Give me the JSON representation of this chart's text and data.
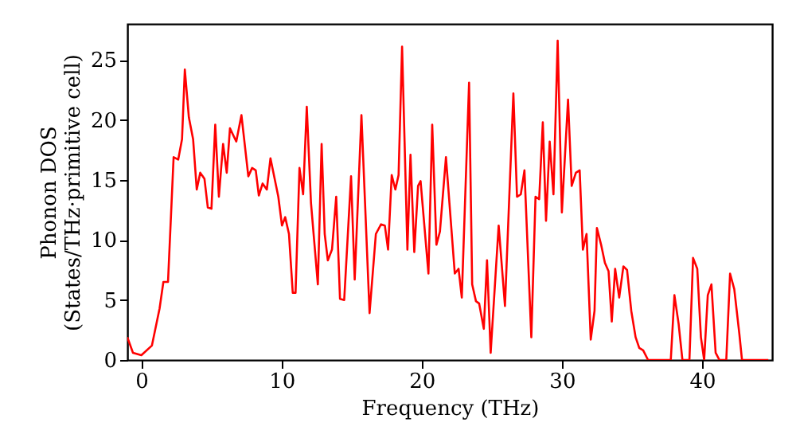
{
  "chart_data": {
    "type": "line",
    "xlabel": "Frequency (THz)",
    "ylabel": "Phonon DOS\n(States/THz·primitive cell)",
    "xlim": [
      -1,
      45
    ],
    "ylim": [
      0,
      28
    ],
    "xticks": [
      0,
      10,
      20,
      30,
      40
    ],
    "yticks": [
      0,
      5,
      10,
      15,
      20,
      25
    ],
    "grid": false,
    "marker": "none",
    "line_style": "solid",
    "series": [
      {
        "color": "#ff0000",
        "x": [
          -1.0,
          -0.6,
          0,
          0.75,
          1.3,
          1.57,
          1.9,
          2.3,
          2.63,
          2.9,
          3.1,
          3.39,
          3.69,
          3.95,
          4.2,
          4.5,
          4.74,
          5.0,
          5.27,
          5.53,
          5.83,
          6.09,
          6.32,
          6.77,
          7.14,
          7.63,
          7.9,
          8.16,
          8.38,
          8.65,
          8.95,
          9.21,
          9.77,
          10.03,
          10.26,
          10.53,
          10.8,
          11.0,
          11.28,
          11.54,
          11.8,
          12.1,
          12.59,
          12.86,
          13.08,
          13.3,
          13.6,
          13.9,
          14.17,
          14.47,
          14.96,
          15.22,
          15.7,
          16.28,
          16.73,
          17.1,
          17.37,
          17.6,
          17.86,
          18.12,
          18.35,
          18.6,
          18.98,
          19.2,
          19.47,
          19.74,
          19.92,
          20.48,
          20.75,
          21.05,
          21.3,
          21.73,
          22.36,
          22.63,
          22.86,
          23.38,
          23.6,
          23.87,
          24.1,
          24.43,
          24.66,
          24.92,
          25.49,
          25.94,
          26.54,
          26.8,
          27.07,
          27.33,
          27.82,
          28.12,
          28.38,
          28.64,
          28.87,
          29.13,
          29.4,
          29.7,
          30.0,
          30.44,
          30.7,
          31.0,
          31.27,
          31.5,
          31.76,
          32.06,
          32.33,
          32.5,
          32.8,
          33.07,
          33.33,
          33.56,
          33.8,
          34.09,
          34.39,
          34.65,
          34.95,
          35.26,
          35.52,
          35.8,
          36.15,
          37.77,
          38.03,
          38.33,
          38.6,
          39.1,
          39.36,
          39.66,
          39.92,
          40.15,
          40.41,
          40.67,
          40.97,
          41.24,
          41.73,
          42.0,
          42.3,
          42.66,
          42.85,
          44.73
        ],
        "values": [
          1.9,
          0.6,
          0.4,
          1.2,
          4.3,
          6.5,
          6.5,
          16.9,
          16.7,
          18.4,
          24.2,
          20.2,
          18.4,
          14.2,
          15.6,
          15.1,
          12.7,
          12.6,
          19.6,
          13.6,
          18.0,
          15.6,
          19.3,
          18.2,
          20.4,
          15.3,
          16.0,
          15.8,
          13.7,
          14.7,
          14.2,
          16.8,
          13.6,
          11.2,
          11.9,
          10.5,
          5.6,
          5.6,
          16.0,
          13.8,
          21.1,
          13.1,
          6.3,
          18.0,
          10.5,
          8.3,
          9.2,
          13.6,
          5.1,
          5.0,
          15.3,
          6.7,
          20.4,
          3.9,
          10.5,
          11.3,
          11.2,
          9.2,
          15.4,
          14.2,
          15.4,
          26.1,
          9.2,
          17.1,
          9.0,
          14.5,
          14.9,
          7.2,
          19.6,
          9.6,
          10.7,
          16.9,
          7.2,
          7.6,
          5.2,
          23.1,
          6.3,
          4.9,
          4.7,
          2.6,
          8.3,
          0.6,
          11.2,
          4.5,
          22.2,
          13.6,
          13.8,
          15.8,
          1.9,
          13.6,
          13.4,
          19.8,
          11.6,
          18.2,
          13.8,
          26.6,
          12.3,
          21.7,
          14.5,
          15.6,
          15.8,
          9.2,
          10.5,
          1.7,
          4.1,
          11.0,
          9.6,
          8.1,
          7.4,
          3.2,
          7.6,
          5.2,
          7.8,
          7.5,
          4.1,
          1.9,
          1.0,
          0.8,
          0,
          0,
          5.4,
          3.0,
          0,
          0,
          8.5,
          7.6,
          1.9,
          0,
          5.4,
          6.3,
          0.6,
          0,
          0,
          7.2,
          5.9,
          2.2,
          0,
          0
        ]
      }
    ]
  }
}
